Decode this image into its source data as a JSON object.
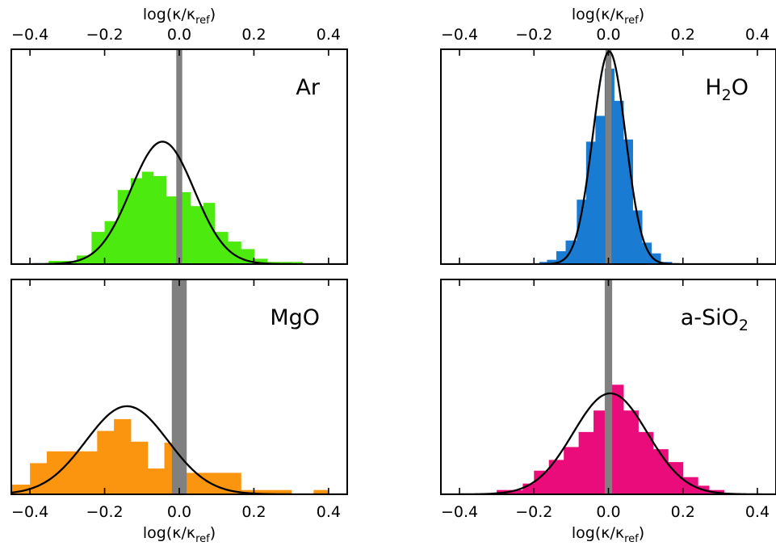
{
  "figure": {
    "axis_label": "log(κ/κ_ref)",
    "axis_label_main": "log(κ/κ",
    "axis_label_sub": "ref",
    "axis_label_close": ")"
  },
  "chart_data": [
    {
      "type": "bar",
      "panel": "top-left",
      "label": "Ar",
      "label_main": "Ar",
      "label_sub": "",
      "label_tail": "",
      "color": "#4cea0e",
      "reference_band": [
        -0.008,
        0.008
      ],
      "reference_color": "#808080",
      "xlim": [
        -0.45,
        0.45
      ],
      "xticks": [
        -0.4,
        -0.2,
        0.0,
        0.2,
        0.4
      ],
      "xtick_labels": [
        "−0.4",
        "−0.2",
        "0.0",
        "0.2",
        "0.4"
      ],
      "xlabel_position": "top",
      "ylim": [
        0,
        1
      ],
      "bins": [
        {
          "x0": -0.35,
          "x1": -0.275,
          "h": 0.015
        },
        {
          "x0": -0.275,
          "x1": -0.235,
          "h": 0.04
        },
        {
          "x0": -0.235,
          "x1": -0.2,
          "h": 0.15
        },
        {
          "x0": -0.2,
          "x1": -0.165,
          "h": 0.2
        },
        {
          "x0": -0.165,
          "x1": -0.13,
          "h": 0.345
        },
        {
          "x0": -0.13,
          "x1": -0.1,
          "h": 0.4
        },
        {
          "x0": -0.1,
          "x1": -0.07,
          "h": 0.43
        },
        {
          "x0": -0.07,
          "x1": -0.035,
          "h": 0.41
        },
        {
          "x0": -0.035,
          "x1": 0.0,
          "h": 0.315
        },
        {
          "x0": 0.0,
          "x1": 0.03,
          "h": 0.335
        },
        {
          "x0": 0.03,
          "x1": 0.065,
          "h": 0.27
        },
        {
          "x0": 0.065,
          "x1": 0.095,
          "h": 0.285
        },
        {
          "x0": 0.095,
          "x1": 0.13,
          "h": 0.15
        },
        {
          "x0": 0.13,
          "x1": 0.165,
          "h": 0.105
        },
        {
          "x0": 0.165,
          "x1": 0.2,
          "h": 0.07
        },
        {
          "x0": 0.2,
          "x1": 0.235,
          "h": 0.025
        },
        {
          "x0": 0.235,
          "x1": 0.33,
          "h": 0.01
        }
      ],
      "gaussian": {
        "mu": -0.045,
        "sigma": 0.085,
        "peak": 0.57
      }
    },
    {
      "type": "bar",
      "panel": "top-right",
      "label": "H2O",
      "label_main": "H",
      "label_sub": "2",
      "label_tail": "O",
      "color": "#1a7bd3",
      "reference_band": [
        -0.008,
        0.008
      ],
      "reference_color": "#808080",
      "xlim": [
        -0.45,
        0.45
      ],
      "xticks": [
        -0.4,
        -0.2,
        0.0,
        0.2,
        0.4
      ],
      "xtick_labels": [
        "−0.4",
        "−0.2",
        "0.0",
        "0.2",
        "0.4"
      ],
      "xlabel_position": "top",
      "ylim": [
        0,
        1
      ],
      "bins": [
        {
          "x0": -0.185,
          "x1": -0.165,
          "h": 0.01
        },
        {
          "x0": -0.165,
          "x1": -0.14,
          "h": 0.02
        },
        {
          "x0": -0.14,
          "x1": -0.115,
          "h": 0.06
        },
        {
          "x0": -0.115,
          "x1": -0.085,
          "h": 0.11
        },
        {
          "x0": -0.085,
          "x1": -0.06,
          "h": 0.3
        },
        {
          "x0": -0.06,
          "x1": -0.035,
          "h": 0.57
        },
        {
          "x0": -0.035,
          "x1": -0.01,
          "h": 0.69
        },
        {
          "x0": -0.01,
          "x1": 0.015,
          "h": 0.91
        },
        {
          "x0": 0.015,
          "x1": 0.04,
          "h": 0.76
        },
        {
          "x0": 0.04,
          "x1": 0.065,
          "h": 0.58
        },
        {
          "x0": 0.065,
          "x1": 0.09,
          "h": 0.25
        },
        {
          "x0": 0.09,
          "x1": 0.115,
          "h": 0.1
        },
        {
          "x0": 0.115,
          "x1": 0.14,
          "h": 0.05
        },
        {
          "x0": 0.14,
          "x1": 0.17,
          "h": 0.01
        }
      ],
      "gaussian": {
        "mu": 0.002,
        "sigma": 0.044,
        "peak": 0.99
      }
    },
    {
      "type": "bar",
      "panel": "bottom-left",
      "label": "MgO",
      "label_main": "MgO",
      "label_sub": "",
      "label_tail": "",
      "color": "#fb9510",
      "reference_band": [
        -0.02,
        0.02
      ],
      "reference_color": "#808080",
      "xlim": [
        -0.45,
        0.45
      ],
      "xticks": [
        -0.4,
        -0.2,
        0.0,
        0.2,
        0.4
      ],
      "xtick_labels": [
        "−0.4",
        "−0.2",
        "0.0",
        "0.2",
        "0.4"
      ],
      "xlabel_position": "bottom",
      "ylim": [
        0,
        1
      ],
      "bins": [
        {
          "x0": -0.45,
          "x1": -0.4,
          "h": 0.045
        },
        {
          "x0": -0.4,
          "x1": -0.355,
          "h": 0.145
        },
        {
          "x0": -0.355,
          "x1": -0.265,
          "h": 0.2
        },
        {
          "x0": -0.265,
          "x1": -0.22,
          "h": 0.2
        },
        {
          "x0": -0.22,
          "x1": -0.175,
          "h": 0.295
        },
        {
          "x0": -0.175,
          "x1": -0.13,
          "h": 0.35
        },
        {
          "x0": -0.13,
          "x1": -0.085,
          "h": 0.245
        },
        {
          "x0": -0.085,
          "x1": -0.04,
          "h": 0.12
        },
        {
          "x0": -0.04,
          "x1": 0.0,
          "h": 0.24
        },
        {
          "x0": 0.0,
          "x1": 0.035,
          "h": 0.1
        },
        {
          "x0": 0.035,
          "x1": 0.165,
          "h": 0.1
        },
        {
          "x0": 0.165,
          "x1": 0.21,
          "h": 0.02
        },
        {
          "x0": 0.21,
          "x1": 0.3,
          "h": 0.02
        },
        {
          "x0": 0.36,
          "x1": 0.4,
          "h": 0.02
        }
      ],
      "gaussian": {
        "mu": -0.14,
        "sigma": 0.11,
        "peak": 0.41
      }
    },
    {
      "type": "bar",
      "panel": "bottom-right",
      "label": "a-SiO2",
      "label_main": "a-SiO",
      "label_sub": "2",
      "label_tail": "",
      "color": "#ea0c7a",
      "reference_band": [
        -0.01,
        0.01
      ],
      "reference_color": "#808080",
      "xlim": [
        -0.45,
        0.45
      ],
      "xticks": [
        -0.4,
        -0.2,
        0.0,
        0.2,
        0.4
      ],
      "xtick_labels": [
        "−0.4",
        "−0.2",
        "0.0",
        "0.2",
        "0.4"
      ],
      "xlabel_position": "bottom",
      "ylim": [
        0,
        1
      ],
      "bins": [
        {
          "x0": -0.3,
          "x1": -0.23,
          "h": 0.02
        },
        {
          "x0": -0.23,
          "x1": -0.2,
          "h": 0.05
        },
        {
          "x0": -0.2,
          "x1": -0.16,
          "h": 0.11
        },
        {
          "x0": -0.16,
          "x1": -0.12,
          "h": 0.16
        },
        {
          "x0": -0.12,
          "x1": -0.08,
          "h": 0.22
        },
        {
          "x0": -0.08,
          "x1": -0.04,
          "h": 0.29
        },
        {
          "x0": -0.04,
          "x1": 0.0,
          "h": 0.39
        },
        {
          "x0": 0.0,
          "x1": 0.04,
          "h": 0.51
        },
        {
          "x0": 0.04,
          "x1": 0.08,
          "h": 0.39
        },
        {
          "x0": 0.08,
          "x1": 0.12,
          "h": 0.29
        },
        {
          "x0": 0.12,
          "x1": 0.16,
          "h": 0.21
        },
        {
          "x0": 0.16,
          "x1": 0.2,
          "h": 0.15
        },
        {
          "x0": 0.2,
          "x1": 0.24,
          "h": 0.08
        },
        {
          "x0": 0.24,
          "x1": 0.27,
          "h": 0.04
        },
        {
          "x0": 0.27,
          "x1": 0.31,
          "h": 0.02
        }
      ],
      "gaussian": {
        "mu": 0.005,
        "sigma": 0.1,
        "peak": 0.47
      }
    }
  ]
}
